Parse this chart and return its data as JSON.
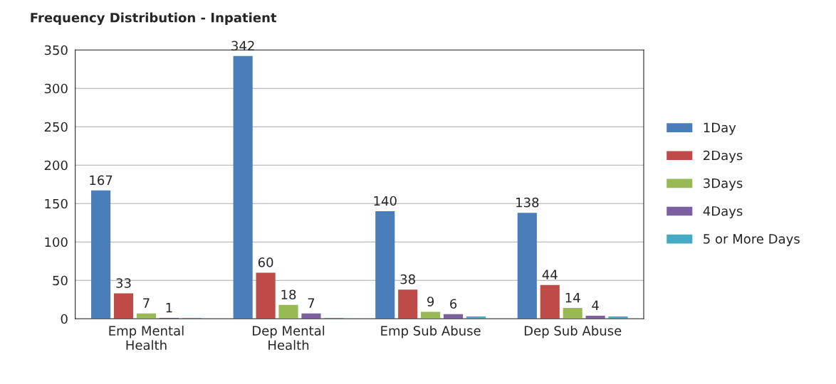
{
  "chart_data": {
    "type": "bar",
    "title": "Frequency Distribution - Inpatient",
    "categories": [
      "Emp Mental Health",
      "Dep Mental Health",
      "Emp Sub Abuse",
      "Dep Sub Abuse"
    ],
    "series": [
      {
        "name": "1Day",
        "color": "#4a7ebb",
        "values": [
          167,
          342,
          140,
          138
        ],
        "value_labels": [
          "167",
          "342",
          "140",
          "138"
        ]
      },
      {
        "name": "2Days",
        "color": "#be4b48",
        "values": [
          33,
          60,
          38,
          44
        ],
        "value_labels": [
          "33",
          "60",
          "38",
          "44"
        ]
      },
      {
        "name": "3Days",
        "color": "#98b954",
        "values": [
          7,
          18,
          9,
          14
        ],
        "value_labels": [
          "7",
          "18",
          "9",
          "14"
        ]
      },
      {
        "name": "4Days",
        "color": "#7d60a0",
        "values": [
          1,
          7,
          6,
          4
        ],
        "value_labels": [
          "1",
          "7",
          "6",
          "4"
        ]
      },
      {
        "name": "5 or More Days",
        "color": "#46aac5",
        "values": [
          1,
          1,
          3,
          3
        ],
        "value_labels": [
          null,
          null,
          null,
          null
        ]
      }
    ],
    "ylim": [
      0,
      350
    ],
    "yticks": [
      0,
      50,
      100,
      150,
      200,
      250,
      300,
      350
    ],
    "grid": "y",
    "legend": "right"
  }
}
